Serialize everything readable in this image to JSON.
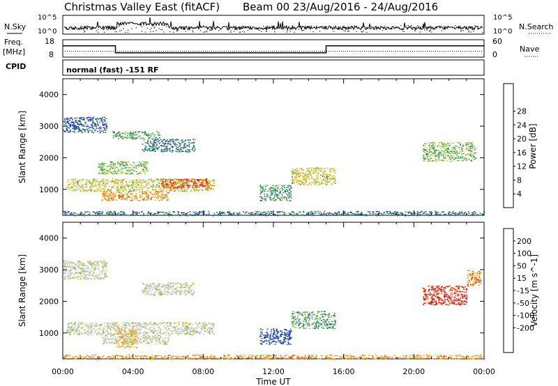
{
  "header": {
    "title_left": "Christmas Valley East (fitACF)",
    "title_right": "Beam 00 23/Aug/2016 - 24/Aug/2016"
  },
  "top_panels": {
    "nsky": {
      "label": "N.Sky",
      "ticks": [
        "10^5",
        "10^0"
      ],
      "right_label": "N.Search",
      "right_ticks": [
        "10^5",
        "10^0"
      ]
    },
    "freq": {
      "label_line1": "Freq.",
      "label_line2": "[MHz]",
      "ticks": [
        "18",
        "8"
      ],
      "right_label": "Nave",
      "right_ticks": [
        "60",
        "0"
      ],
      "steps": [
        {
          "t_start": 0.0,
          "t_end": 3.0,
          "freq": 14.5
        },
        {
          "t_start": 3.0,
          "t_end": 15.0,
          "freq": 10.5
        },
        {
          "t_start": 15.0,
          "t_end": 24.0,
          "freq": 14.5
        }
      ]
    },
    "cpid": {
      "label": "CPID",
      "text": "normal (fast) -151 RF"
    }
  },
  "chart_data": [
    {
      "type": "heatmap",
      "name": "power",
      "ylabel": "Slant Range [km]",
      "ylim": [
        180,
        4500
      ],
      "yticks": [
        "1000",
        "2000",
        "3000",
        "4000"
      ],
      "xlim": [
        0,
        24
      ],
      "colorbar": {
        "label": "Power [dB]",
        "ticks": [
          "4",
          "8",
          "12",
          "16",
          "20",
          "24",
          "28"
        ],
        "colors": [
          "#0a1ee6",
          "#2a4aa6",
          "#2f7f6f",
          "#3aa05a",
          "#a8d050",
          "#f2c21b",
          "#f08a1a",
          "#e8501a",
          "#d01010"
        ]
      },
      "regions": [
        {
          "t0": 0.0,
          "t1": 24.0,
          "r0": 180,
          "r1": 320,
          "level": 0.25
        },
        {
          "t0": 0.2,
          "t1": 8.6,
          "r0": 950,
          "r1": 1350,
          "level": 0.55
        },
        {
          "t0": 5.6,
          "t1": 8.3,
          "r0": 1050,
          "r1": 1350,
          "level": 0.85
        },
        {
          "t0": 2.2,
          "t1": 6.0,
          "r0": 650,
          "r1": 950,
          "level": 0.7
        },
        {
          "t0": 2.0,
          "t1": 4.8,
          "r0": 1500,
          "r1": 1900,
          "level": 0.45
        },
        {
          "t0": 0.0,
          "t1": 2.5,
          "r0": 2800,
          "r1": 3300,
          "level": 0.2
        },
        {
          "t0": 2.8,
          "t1": 5.5,
          "r0": 2600,
          "r1": 2850,
          "level": 0.4
        },
        {
          "t0": 4.5,
          "t1": 7.5,
          "r0": 2200,
          "r1": 2600,
          "level": 0.25
        },
        {
          "t0": 11.2,
          "t1": 13.0,
          "r0": 650,
          "r1": 1150,
          "level": 0.35
        },
        {
          "t0": 13.0,
          "t1": 15.5,
          "r0": 1150,
          "r1": 1700,
          "level": 0.55
        },
        {
          "t0": 20.5,
          "t1": 23.5,
          "r0": 1900,
          "r1": 2500,
          "level": 0.45
        }
      ]
    },
    {
      "type": "heatmap",
      "name": "velocity",
      "ylabel": "Slant Range [km]",
      "ylim": [
        180,
        4500
      ],
      "yticks": [
        "1000",
        "2000",
        "3000",
        "4000"
      ],
      "xlim": [
        0,
        24
      ],
      "xticks": [
        "00:00",
        "04:00",
        "08:00",
        "12:00",
        "16:00",
        "20:00",
        "00:00"
      ],
      "xlabel": "Time UT",
      "colorbar": {
        "label": "Velocity [m s^-1]",
        "ticks": [
          "200",
          "100",
          "50",
          "15",
          "-15",
          "-50",
          "-100",
          "-200"
        ],
        "colors": [
          "#1e3fb0",
          "#2b5fa8",
          "#2f8a6a",
          "#76c442",
          "#c8c8c0",
          "#c8c8c0",
          "#f5c010",
          "#f08a1a",
          "#e84d12",
          "#e01010"
        ]
      },
      "regions": [
        {
          "t0": 0.0,
          "t1": 24.0,
          "r0": 180,
          "r1": 320,
          "level": 0.72
        },
        {
          "t0": 0.2,
          "t1": 8.6,
          "r0": 950,
          "r1": 1350,
          "level": 0.48
        },
        {
          "t0": 2.2,
          "t1": 6.0,
          "r0": 650,
          "r1": 950,
          "level": 0.48
        },
        {
          "t0": 3.0,
          "t1": 4.2,
          "r0": 550,
          "r1": 1150,
          "level": 0.65
        },
        {
          "t0": 0.0,
          "t1": 2.5,
          "r0": 2700,
          "r1": 3300,
          "level": 0.48
        },
        {
          "t0": 4.5,
          "t1": 7.5,
          "r0": 2200,
          "r1": 2600,
          "level": 0.48
        },
        {
          "t0": 11.2,
          "t1": 13.0,
          "r0": 650,
          "r1": 1150,
          "level": 0.05
        },
        {
          "t0": 13.0,
          "t1": 15.5,
          "r0": 1150,
          "r1": 1700,
          "level": 0.3
        },
        {
          "t0": 20.5,
          "t1": 23.0,
          "r0": 1900,
          "r1": 2500,
          "level": 0.93
        },
        {
          "t0": 23.0,
          "t1": 23.8,
          "r0": 2500,
          "r1": 3000,
          "level": 0.78
        }
      ]
    }
  ]
}
